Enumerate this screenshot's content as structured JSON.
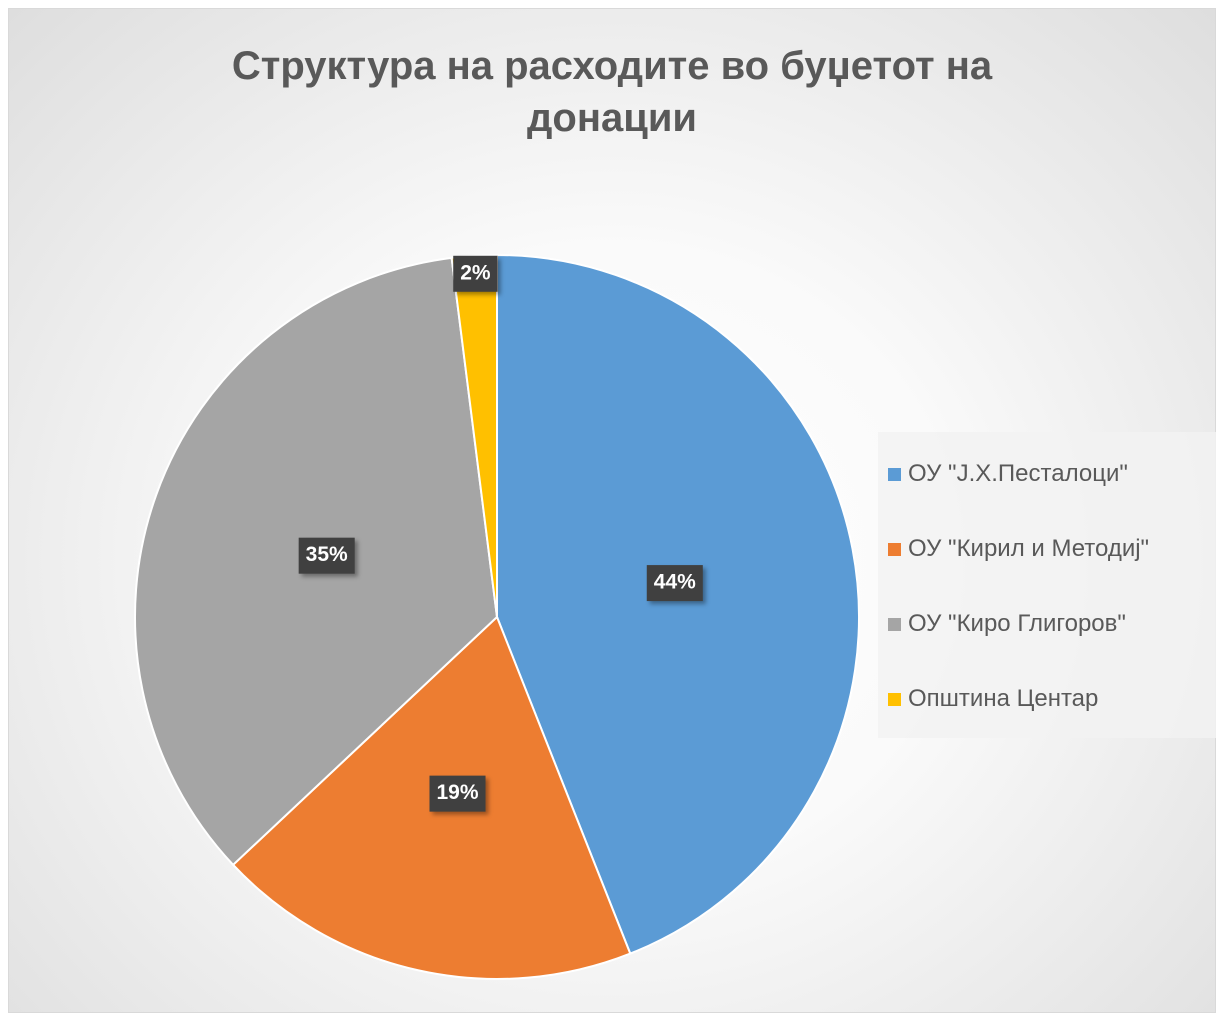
{
  "chart_data": {
    "type": "pie",
    "title": "Структура на расходите во буџетот на донации",
    "categories": [
      "ОУ \"Ј.Х.Песталоци\"",
      "ОУ \"Кирил и Методиј\"",
      "ОУ \"Киро Глигоров\"",
      "Општина Центар"
    ],
    "values": [
      44,
      19,
      35,
      2
    ],
    "value_labels": [
      "44%",
      "19%",
      "35%",
      "2%"
    ],
    "colors": [
      "#5b9bd5",
      "#ed7d31",
      "#a5a5a5",
      "#ffc000"
    ],
    "legend": "right"
  }
}
